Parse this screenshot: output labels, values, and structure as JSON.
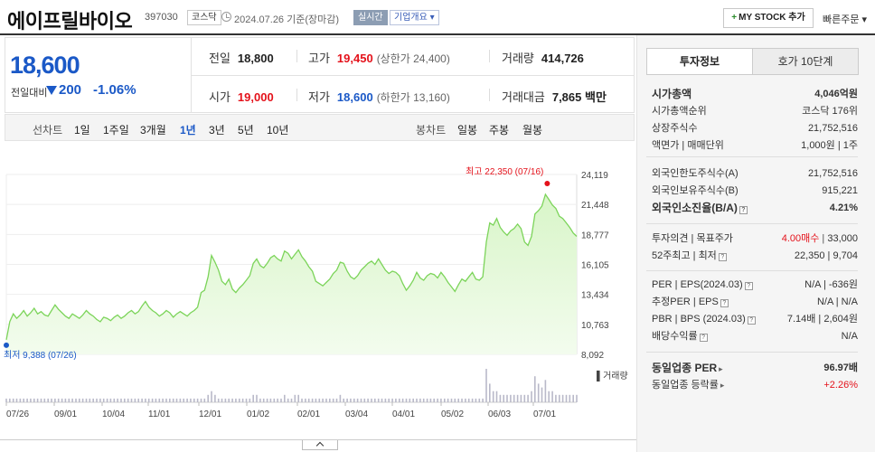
{
  "header": {
    "stock_name": "에이프릴바이오",
    "stock_code": "397030",
    "market_badge": "코스닥",
    "date_text": "2024.07.26  기준(장마감)",
    "realtime_badge": "실시간",
    "overview_badge": "기업개요 ▾",
    "mystock_label": "MY STOCK 추가",
    "fast_order_label": "빠른주문 ▾"
  },
  "price": {
    "current": "18,600",
    "change_label": "전일대비",
    "change_value": "200",
    "change_pct": "-1.06%",
    "direction": "down"
  },
  "summary": {
    "prev_close": {
      "label": "전일",
      "value": "18,800"
    },
    "high": {
      "label": "고가",
      "value": "19,450",
      "sub": "(상한가 24,400)"
    },
    "volume": {
      "label": "거래량",
      "value": "414,726"
    },
    "open": {
      "label": "시가",
      "value": "19,000"
    },
    "low": {
      "label": "저가",
      "value": "18,600",
      "sub": "(하한가 13,160)"
    },
    "amount": {
      "label": "거래대금",
      "value": "7,865 백만"
    }
  },
  "period_bar": {
    "line_label": "선차트",
    "line_options": [
      "1일",
      "1주일",
      "3개월",
      "1년",
      "3년",
      "5년",
      "10년"
    ],
    "active": "1년",
    "candle_label": "봉차트",
    "candle_options": [
      "일봉",
      "주봉",
      "월봉"
    ]
  },
  "chart_data": {
    "type": "area",
    "y_ticks": [
      "24,119",
      "21,448",
      "18,777",
      "16,105",
      "13,434",
      "10,763",
      "8,092"
    ],
    "ylim": [
      8092,
      24119
    ],
    "x_ticks": [
      "07/26",
      "09/01",
      "10/04",
      "11/01",
      "12/01",
      "01/02",
      "02/01",
      "03/04",
      "04/01",
      "05/02",
      "06/03",
      "07/01"
    ],
    "max_label": "최고 22,350 (07/16)",
    "min_label": "최저 9,388 (07/26)",
    "volume_label": "거래량",
    "values": [
      9388,
      11000,
      11700,
      11300,
      11600,
      12000,
      11500,
      11800,
      12200,
      11700,
      11900,
      11600,
      11500,
      12000,
      12500,
      12100,
      11800,
      11500,
      11300,
      11700,
      11500,
      11300,
      11600,
      12000,
      11700,
      11500,
      11200,
      11000,
      11400,
      11300,
      11100,
      11400,
      11600,
      11300,
      11500,
      11800,
      12000,
      11700,
      11900,
      12400,
      12800,
      12300,
      12000,
      11800,
      11500,
      11700,
      12000,
      11800,
      11400,
      11700,
      11900,
      11700,
      11500,
      11800,
      12000,
      12300,
      13600,
      13800,
      15000,
      16900,
      16300,
      15600,
      14600,
      14300,
      14800,
      13900,
      13600,
      14000,
      14300,
      14700,
      15100,
      16200,
      16600,
      16000,
      15800,
      16200,
      16700,
      16900,
      16600,
      16400,
      17300,
      17100,
      16600,
      17000,
      17400,
      16800,
      16400,
      15900,
      15500,
      14600,
      14400,
      14200,
      14500,
      14800,
      15300,
      15600,
      16300,
      16200,
      15500,
      15000,
      14800,
      15100,
      15600,
      15900,
      16200,
      16400,
      16100,
      16600,
      16100,
      15600,
      15300,
      15500,
      15400,
      15100,
      14400,
      13800,
      14200,
      14700,
      15400,
      14900,
      14700,
      15100,
      15300,
      15200,
      14900,
      15400,
      15000,
      14500,
      14100,
      13700,
      14300,
      14800,
      14600,
      15000,
      15400,
      14800,
      14700,
      15000,
      18100,
      19800,
      19600,
      20200,
      19400,
      19000,
      18700,
      19100,
      19300,
      19700,
      19300,
      18100,
      17800,
      18600,
      20600,
      20900,
      21300,
      22350,
      21900,
      21400,
      21100,
      20400,
      20200,
      19800,
      19400,
      18900,
      18600
    ],
    "volume": [
      1,
      1,
      1,
      1,
      1,
      1,
      1,
      1,
      1,
      1,
      1,
      1,
      1,
      1,
      1,
      1,
      1,
      1,
      1,
      1,
      1,
      1,
      1,
      1,
      1,
      1,
      1,
      1,
      1,
      1,
      1,
      1,
      1,
      1,
      1,
      1,
      1,
      1,
      1,
      1,
      1,
      1,
      1,
      1,
      1,
      1,
      1,
      1,
      1,
      1,
      1,
      1,
      1,
      1,
      1,
      1,
      1,
      1,
      2,
      3,
      2,
      1,
      1,
      1,
      1,
      1,
      1,
      1,
      1,
      1,
      1,
      2,
      2,
      1,
      1,
      1,
      1,
      1,
      1,
      1,
      2,
      1,
      1,
      2,
      2,
      1,
      1,
      1,
      1,
      1,
      1,
      1,
      1,
      1,
      1,
      1,
      2,
      1,
      1,
      1,
      1,
      1,
      1,
      1,
      1,
      1,
      1,
      1,
      1,
      1,
      1,
      1,
      1,
      1,
      1,
      1,
      1,
      1,
      1,
      1,
      1,
      1,
      1,
      1,
      1,
      1,
      1,
      1,
      1,
      1,
      1,
      1,
      1,
      1,
      1,
      1,
      1,
      1,
      9,
      5,
      3,
      3,
      2,
      2,
      2,
      2,
      2,
      2,
      2,
      2,
      2,
      3,
      7,
      5,
      4,
      6,
      3,
      3,
      2,
      2,
      2,
      2,
      2,
      2,
      2
    ],
    "colors": {
      "line": "#7cd45a",
      "fill_top": "#d8f5c8",
      "fill_bottom": "#f3fcee",
      "max": "#e4121b",
      "min": "#1b59c7"
    }
  },
  "invest_panel": {
    "tabs": [
      "투자정보",
      "호가 10단계"
    ],
    "section1": [
      {
        "k": "시가총액",
        "v": "4,046억원",
        "bold": true
      },
      {
        "k": "시가총액순위",
        "v": "코스닥 176위"
      },
      {
        "k": "상장주식수",
        "v": "21,752,516"
      },
      {
        "k": "액면가 | 매매단위",
        "v": "1,000원 | 1주"
      }
    ],
    "section2": [
      {
        "k": "외국인한도주식수(A)",
        "v": "21,752,516"
      },
      {
        "k": "외국인보유주식수(B)",
        "v": "915,221"
      },
      {
        "k": "외국인소진율(B/A)",
        "v": "4.21%",
        "bold": true,
        "help": true
      }
    ],
    "section3": [
      {
        "k": "투자의견 | 목표주가",
        "v_up": "4.00매수",
        "v": "33,000"
      },
      {
        "k": "52주최고 | 최저",
        "v": "22,350 | 9,704",
        "help": true
      }
    ],
    "section4": [
      {
        "k": "PER | EPS(2024.03)",
        "v": "N/A | -636원",
        "help": true
      },
      {
        "k": "추정PER | EPS",
        "v": "N/A | N/A",
        "help": true
      },
      {
        "k": "PBR | BPS (2024.03)",
        "v": "7.14배 | 2,604원",
        "help": true
      },
      {
        "k": "배당수익률",
        "v": "N/A",
        "help": true
      }
    ],
    "section5": [
      {
        "k": "동일업종 PER",
        "v": "96.97배",
        "bold": true
      },
      {
        "k": "동일업종 등락률",
        "v": "+2.26%",
        "up": true
      }
    ]
  }
}
